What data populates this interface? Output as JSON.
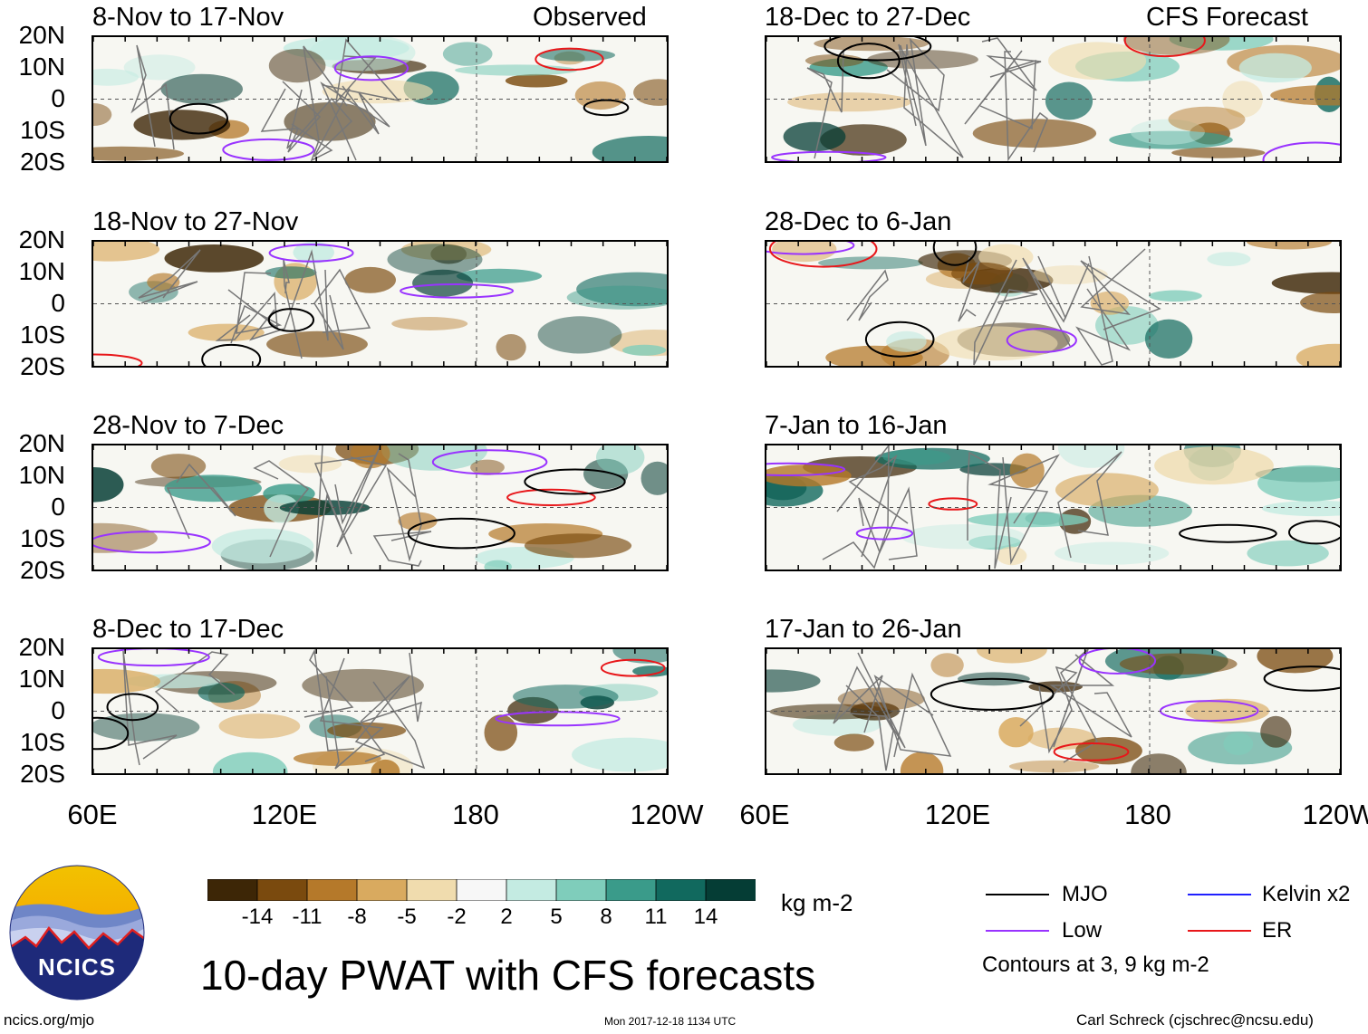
{
  "main_title": "10-day PWAT with CFS forecasts",
  "units": "kg m-2",
  "contour_note": "Contours at 3, 9 kg m-2",
  "footer": {
    "url": "ncics.org/mjo",
    "timestamp": "Mon 2017-12-18 1134 UTC",
    "author": "Carl Schreck (cjschrec@ncsu.edu)"
  },
  "logo_text": "NCICS",
  "columns": {
    "left_label": "Observed",
    "right_label": "CFS Forecast"
  },
  "y_axis": [
    "20N",
    "10N",
    "0",
    "10S",
    "20S"
  ],
  "x_axis": [
    "60E",
    "120E",
    "180",
    "120W"
  ],
  "panels_left": [
    {
      "title": "8-Nov to 17-Nov"
    },
    {
      "title": "18-Nov to 27-Nov"
    },
    {
      "title": "28-Nov to 7-Dec"
    },
    {
      "title": "8-Dec to 17-Dec"
    }
  ],
  "panels_right": [
    {
      "title": "18-Dec to 27-Dec"
    },
    {
      "title": "28-Dec to 6-Jan"
    },
    {
      "title": "7-Jan to 16-Jan"
    },
    {
      "title": "17-Jan to 26-Jan"
    }
  ],
  "colorbar": {
    "ticks": [
      "-14",
      "-11",
      "-8",
      "-5",
      "-2",
      "2",
      "5",
      "8",
      "11",
      "14"
    ],
    "colors": [
      "#3d2606",
      "#7a4a0e",
      "#b5792a",
      "#d9aa5f",
      "#f0dcae",
      "#f7f7f7",
      "#c4ebe2",
      "#7fcdbb",
      "#3a9b8a",
      "#11695e",
      "#053d35"
    ]
  },
  "contour_legend": [
    {
      "label": "MJO",
      "color": "#000000"
    },
    {
      "label": "Kelvin x2",
      "color": "#2020ff"
    },
    {
      "label": "Low",
      "color": "#9933ff"
    },
    {
      "label": "ER",
      "color": "#e8171a"
    }
  ]
}
